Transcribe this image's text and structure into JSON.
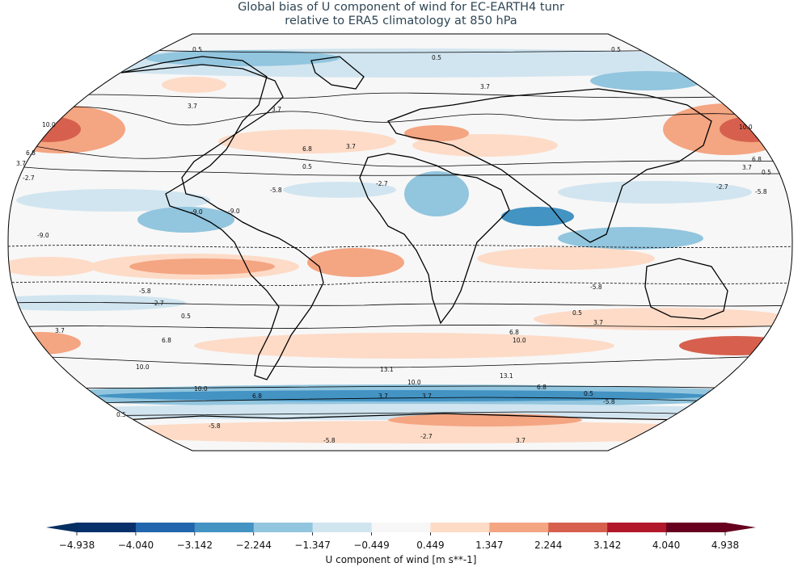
{
  "title_line1": "Global bias of U component of wind for EC-EARTH4 tunr",
  "title_line2": "relative to ERA5 climatology at 850 hPa",
  "colorbar": {
    "label": "U component of wind [m s**-1]",
    "ticks": [
      "−4.938",
      "−4.040",
      "−3.142",
      "−2.244",
      "−1.347",
      "−0.449",
      "0.449",
      "1.347",
      "2.244",
      "3.142",
      "4.040",
      "4.938"
    ],
    "colors": [
      "#08306b",
      "#2166ac",
      "#4393c3",
      "#92c5de",
      "#d1e5f0",
      "#f7f7f7",
      "#fddbc7",
      "#f4a582",
      "#d6604d",
      "#b2182b",
      "#67001f"
    ],
    "extend_colors": [
      "#053061",
      "#67001f"
    ]
  },
  "projection": "Robinson",
  "contour_labels": [
    "0.5",
    "3.7",
    "6.8",
    "10.0",
    "13.1",
    "-2.7",
    "-5.8",
    "-9.0"
  ]
}
